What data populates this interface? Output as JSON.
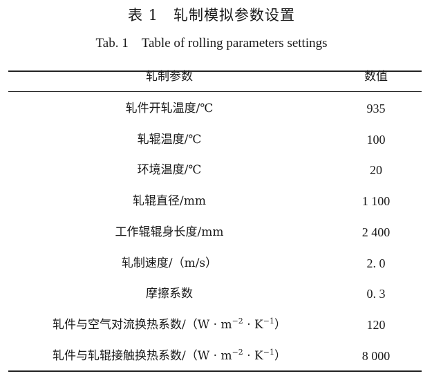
{
  "caption_cn": "表 1　轧制模拟参数设置",
  "caption_en": "Tab. 1　Table of rolling parameters settings",
  "headers": [
    "轧制参数",
    "数值"
  ],
  "rows": [
    {
      "param": "轧件开轧温度/℃",
      "value": "935"
    },
    {
      "param": "轧辊温度/℃",
      "value": "100"
    },
    {
      "param": "环境温度/℃",
      "value": "20"
    },
    {
      "param": "轧辊直径/mm",
      "value": "1 100"
    },
    {
      "param": "工作辊辊身长度/mm",
      "value": "2 400"
    },
    {
      "param": "轧制速度/（m/s）",
      "value": "2. 0"
    },
    {
      "param": "摩擦系数",
      "value": "0. 3"
    },
    {
      "param": "轧件与空气对流换热系数/（W · m",
      "sup1": "−2",
      "mid": " · K",
      "sup2": "−1",
      "end": "）",
      "value": "120"
    },
    {
      "param": "轧件与轧辊接触换热系数/（W · m",
      "sup1": "−2",
      "mid": " · K",
      "sup2": "−1",
      "end": "）",
      "value": "8 000"
    }
  ]
}
